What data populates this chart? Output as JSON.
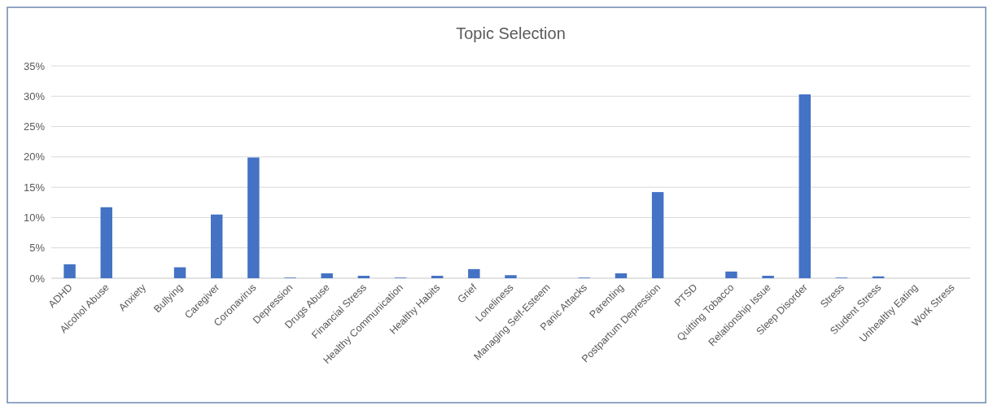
{
  "chart_data": {
    "type": "bar",
    "title": "Topic Selection",
    "categories": [
      "ADHD",
      "Alcohol Abuse",
      "Anxiety",
      "Bullying",
      "Caregiver",
      "Coronavirus",
      "Depression",
      "Drugs Abuse",
      "Financial Stress",
      "Healthy Communication",
      "Healthy Habits",
      "Grief",
      "Loneliness",
      "Managing Self-Esteem",
      "Panic Attacks",
      "Parenting",
      "Postpartum Depression",
      "PTSD",
      "Quitting Tobacco",
      "Relationship Issue",
      "Sleep Disorder",
      "Stress",
      "Student Stress",
      "Unhealthy Eating",
      "Work Stress"
    ],
    "values": [
      2.3,
      11.7,
      0,
      1.8,
      10.5,
      19.9,
      0.1,
      0.8,
      0.4,
      0.1,
      0.4,
      1.5,
      0.5,
      0,
      0.1,
      0.8,
      14.2,
      0,
      1.1,
      0.4,
      30.3,
      0.1,
      0.3,
      0,
      0
    ],
    "color": "#4472c4",
    "ylim": [
      0,
      35
    ],
    "yticks": [
      {
        "value": 0,
        "label": "0%"
      },
      {
        "value": 5,
        "label": "5%"
      },
      {
        "value": 10,
        "label": "10%"
      },
      {
        "value": 15,
        "label": "15%"
      },
      {
        "value": 20,
        "label": "20%"
      },
      {
        "value": 25,
        "label": "25%"
      },
      {
        "value": 30,
        "label": "30%"
      },
      {
        "value": 35,
        "label": "35%"
      }
    ],
    "grid": "y"
  }
}
